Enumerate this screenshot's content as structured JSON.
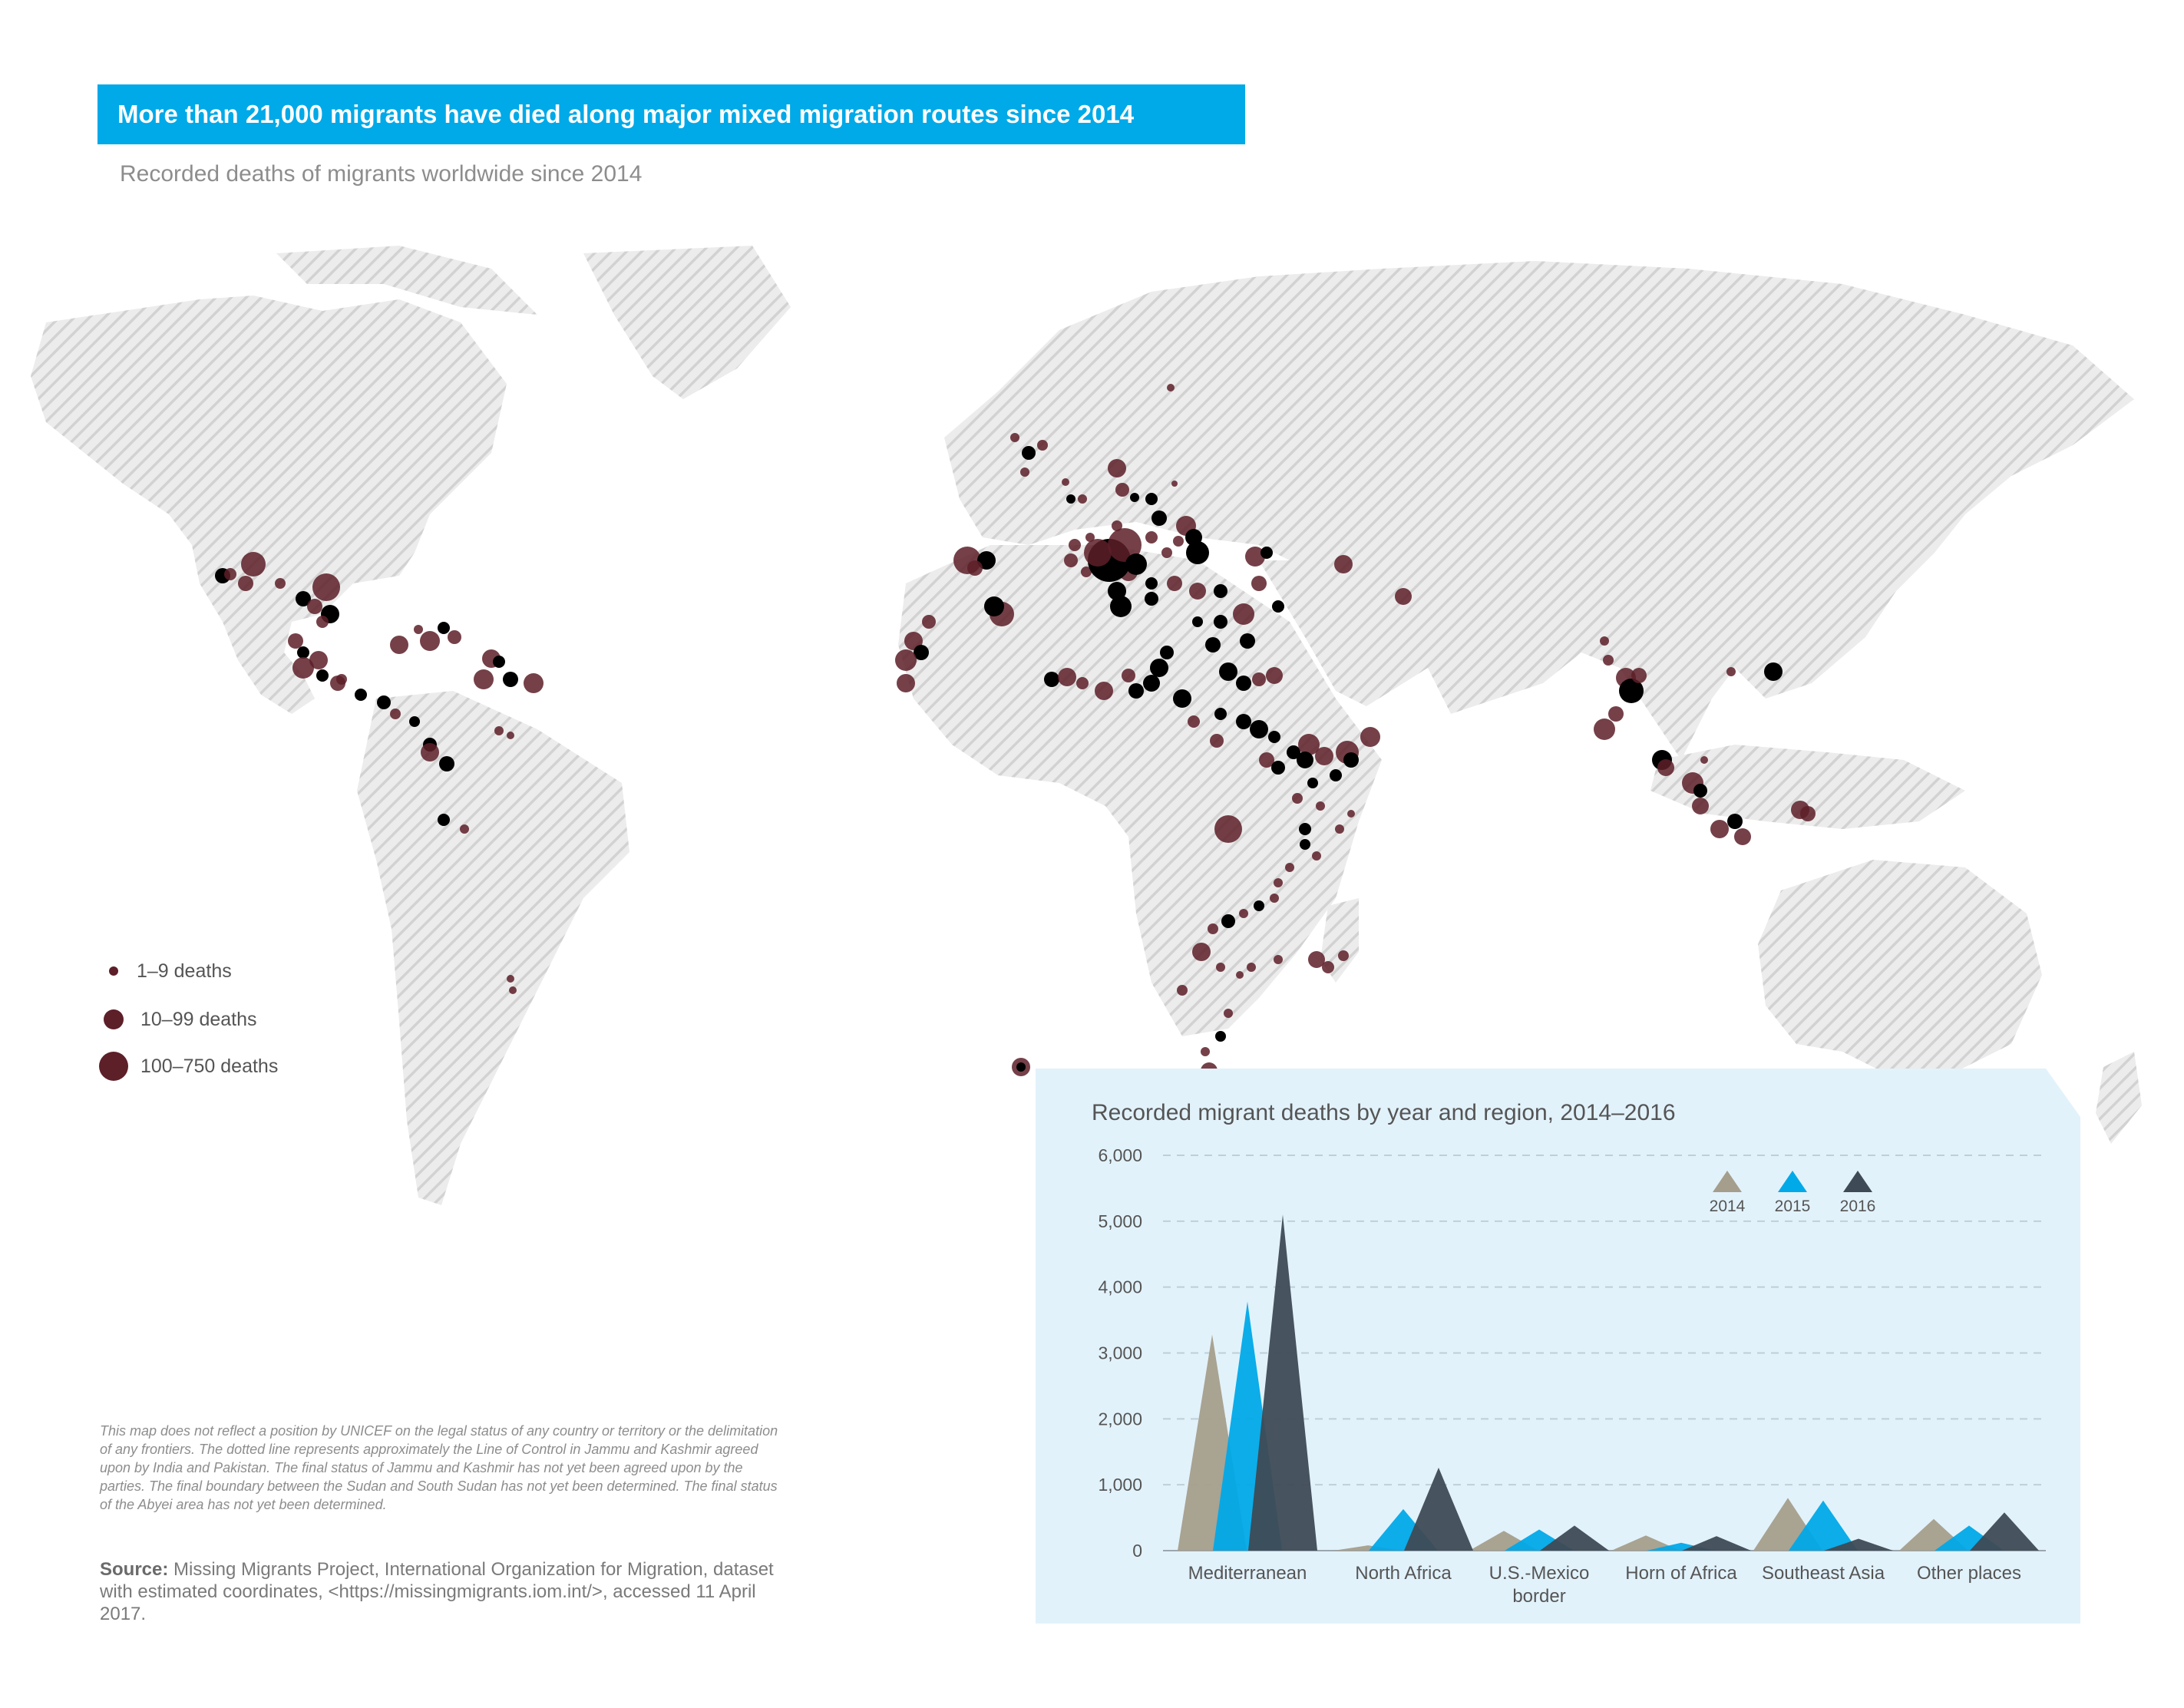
{
  "header": {
    "title": "More than 21,000 migrants have died along major mixed migration routes since 2014",
    "subtitle": "Recorded deaths of migrants worldwide since 2014"
  },
  "map": {
    "land_color": "#d8d8d8",
    "dot_color": "#5d1f28",
    "dense_dot_color": "#000000",
    "legend": [
      {
        "label": "1–9 deaths",
        "size": "small"
      },
      {
        "label": "10–99 deaths",
        "size": "medium"
      },
      {
        "label": "100–750 deaths",
        "size": "large"
      }
    ]
  },
  "notes": {
    "disclaimer": "This map does not reflect a position by UNICEF on the legal status of any country or territory or the delimitation of any frontiers. The dotted line represents approximately the Line of Control in Jammu and Kashmir agreed upon by India and Pakistan. The final status of Jammu and Kashmir has not yet been agreed upon by the parties. The final boundary between the Sudan and South Sudan has not yet been determined. The final status of the Abyei area has not yet been determined.",
    "source_label": "Source:",
    "source_text": " Missing Migrants Project, International Organization for Migration, dataset with estimated coordinates, <https://missingmigrants.iom.int/>, accessed 11 April 2017."
  },
  "chart_data": {
    "type": "area",
    "title": "Recorded migrant deaths by year and region, 2014–2016",
    "categories": [
      "Mediterranean",
      "North Africa",
      "U.S.-Mexico border",
      "Horn of Africa",
      "Southeast Asia",
      "Other places"
    ],
    "category_lines": [
      [
        "Mediterranean"
      ],
      [
        "North Africa"
      ],
      [
        "U.S.-Mexico",
        "border"
      ],
      [
        "Horn of Africa"
      ],
      [
        "Southeast Asia"
      ],
      [
        "Other places"
      ]
    ],
    "series": [
      {
        "name": "2014",
        "color": "#a59e8c",
        "values": [
          3280,
          80,
          300,
          230,
          800,
          480
        ]
      },
      {
        "name": "2015",
        "color": "#00a9e8",
        "values": [
          3780,
          630,
          320,
          120,
          760,
          380
        ]
      },
      {
        "name": "2016",
        "color": "#3e4a55",
        "values": [
          5100,
          1260,
          380,
          220,
          180,
          580
        ]
      }
    ],
    "yticks": [
      "0",
      "1,000",
      "2,000",
      "3,000",
      "4,000",
      "5,000",
      "6,000"
    ],
    "ylim": [
      0,
      6000
    ],
    "grid": true,
    "legend_position": "top-right",
    "panel_color": "#e2f2fb"
  }
}
